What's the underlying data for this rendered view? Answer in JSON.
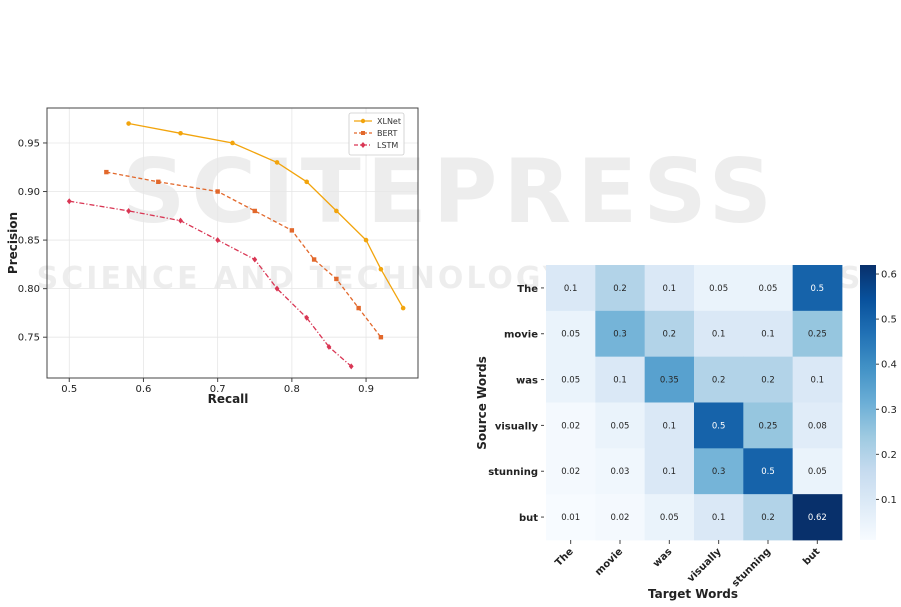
{
  "colors": {
    "xlnet": "#f2a40c",
    "bert": "#e2682b",
    "lstm": "#d93654",
    "heatmap_low": "#f7fbff",
    "heatmap_high": "#08306b"
  },
  "watermark": {
    "line1": "SCITEPRESS",
    "line2": "SCIENCE AND TECHNOLOGY PUBLICATIONS"
  },
  "chart_data": [
    {
      "type": "line",
      "xlabel": "Recall",
      "ylabel": "Precision",
      "xlim": [
        0.47,
        0.97
      ],
      "ylim": [
        0.708,
        0.986
      ],
      "xticks": [
        0.5,
        0.6,
        0.7,
        0.8,
        0.9
      ],
      "xtick_labels": [
        "0.5",
        "0.6",
        "0.7",
        "0.8",
        "0.9"
      ],
      "yticks": [
        0.75,
        0.8,
        0.85,
        0.9,
        0.95
      ],
      "ytick_labels": [
        "0.75",
        "0.80",
        "0.85",
        "0.90",
        "0.95"
      ],
      "grid": true,
      "legend_position": "top-right",
      "series": [
        {
          "name": "XLNet",
          "marker": "circle",
          "line_style": "solid",
          "x": [
            0.58,
            0.65,
            0.72,
            0.78,
            0.82,
            0.86,
            0.9,
            0.92,
            0.95
          ],
          "y": [
            0.97,
            0.96,
            0.95,
            0.93,
            0.91,
            0.88,
            0.85,
            0.82,
            0.78
          ]
        },
        {
          "name": "BERT",
          "marker": "square",
          "line_style": "dashed",
          "x": [
            0.55,
            0.62,
            0.7,
            0.75,
            0.8,
            0.83,
            0.86,
            0.89,
            0.92
          ],
          "y": [
            0.92,
            0.91,
            0.9,
            0.88,
            0.86,
            0.83,
            0.81,
            0.78,
            0.75
          ]
        },
        {
          "name": "LSTM",
          "marker": "diamond",
          "line_style": "dashdot",
          "x": [
            0.5,
            0.58,
            0.65,
            0.7,
            0.75,
            0.78,
            0.82,
            0.85,
            0.88
          ],
          "y": [
            0.89,
            0.88,
            0.87,
            0.85,
            0.83,
            0.8,
            0.77,
            0.74,
            0.72
          ]
        }
      ]
    },
    {
      "type": "heatmap",
      "xlabel": "Target Words",
      "ylabel": "Source Words",
      "x_categories": [
        "The",
        "movie",
        "was",
        "visually",
        "stunning",
        "but"
      ],
      "y_categories": [
        "The",
        "movie",
        "was",
        "visually",
        "stunning",
        "but"
      ],
      "values": [
        [
          0.1,
          0.2,
          0.1,
          0.05,
          0.05,
          0.5
        ],
        [
          0.05,
          0.3,
          0.2,
          0.1,
          0.1,
          0.25
        ],
        [
          0.05,
          0.1,
          0.35,
          0.2,
          0.2,
          0.1
        ],
        [
          0.02,
          0.05,
          0.1,
          0.5,
          0.25,
          0.08
        ],
        [
          0.02,
          0.03,
          0.1,
          0.3,
          0.5,
          0.05
        ],
        [
          0.01,
          0.02,
          0.05,
          0.1,
          0.2,
          0.62
        ]
      ],
      "cell_labels": [
        [
          "0.1",
          "0.2",
          "0.1",
          "0.05",
          "0.05",
          "0.5"
        ],
        [
          "0.05",
          "0.3",
          "0.2",
          "0.1",
          "0.1",
          "0.25"
        ],
        [
          "0.05",
          "0.1",
          "0.35",
          "0.2",
          "0.2",
          "0.1"
        ],
        [
          "0.02",
          "0.05",
          "0.1",
          "0.5",
          "0.25",
          "0.08"
        ],
        [
          "0.02",
          "0.03",
          "0.1",
          "0.3",
          "0.5",
          "0.05"
        ],
        [
          "0.01",
          "0.02",
          "0.05",
          "0.1",
          "0.2",
          "0.62"
        ]
      ],
      "colorbar": {
        "vmin": 0.01,
        "vmax": 0.62,
        "ticks": [
          0.1,
          0.2,
          0.3,
          0.4,
          0.5,
          0.6
        ],
        "tick_labels": [
          "0.1",
          "0.2",
          "0.3",
          "0.4",
          "0.5",
          "0.6"
        ]
      }
    }
  ]
}
